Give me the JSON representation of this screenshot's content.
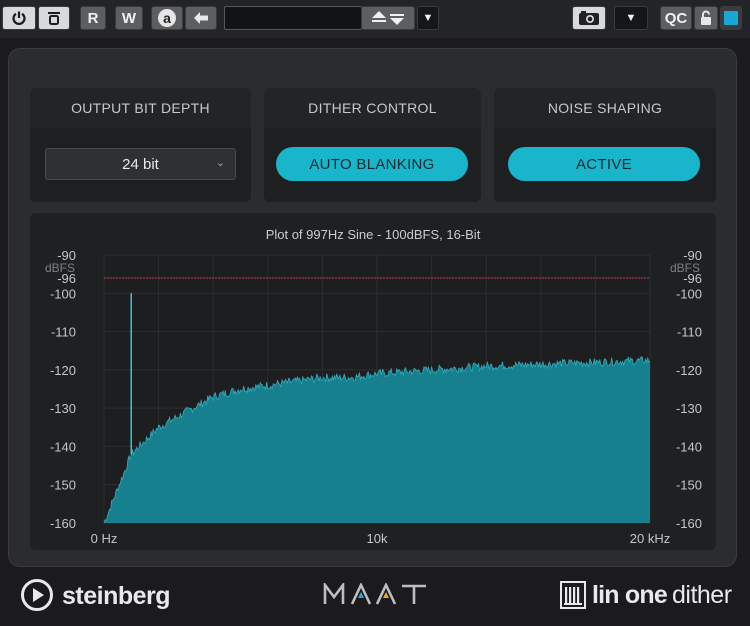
{
  "toolbar": {
    "read_label": "R",
    "write_label": "W",
    "auto_label": "a",
    "qc_label": "QC",
    "preset_name": "",
    "accent": "#19a7d6"
  },
  "panels": {
    "output_bit_depth": {
      "title": "OUTPUT BIT DEPTH",
      "value": "24 bit"
    },
    "dither_control": {
      "title": "DITHER CONTROL",
      "value": "AUTO BLANKING"
    },
    "noise_shaping": {
      "title": "NOISE SHAPING",
      "value": "ACTIVE"
    }
  },
  "plot": {
    "title": "Plot of 997Hz Sine - 100dBFS, 16-Bit",
    "unit_label": "dBFS",
    "colors": {
      "fill": "#17808f",
      "edge": "#3fd0e2",
      "ref_line": "#c23650",
      "grid": "#2c2e31"
    }
  },
  "chart_data": {
    "type": "area",
    "title": "Plot of 997Hz Sine - 100dBFS, 16-Bit",
    "ylabel": "dBFS",
    "x_tick_labels": [
      "0 Hz",
      "10k",
      "20 kHz"
    ],
    "y_tick_labels": [
      "-90",
      "-96",
      "-100",
      "-110",
      "-120",
      "-130",
      "-140",
      "-150",
      "-160"
    ],
    "y_ticks": [
      -90,
      -96,
      -100,
      -110,
      -120,
      -130,
      -140,
      -150,
      -160
    ],
    "xlim": [
      0,
      20000
    ],
    "ylim": [
      -160,
      -90
    ],
    "reference_line_dbfs": -96,
    "peak": {
      "x": 997,
      "y": -100
    },
    "series": [
      {
        "x": [
          0,
          500,
          1000,
          2000,
          3000,
          4000,
          5000,
          6000,
          7000,
          8000,
          9000,
          10000,
          12000,
          14000,
          16000,
          18000,
          20000
        ],
        "values": [
          -160,
          -151,
          -142,
          -135,
          -131,
          -127,
          -125,
          -124,
          -123,
          -122,
          -122,
          -121,
          -120,
          -119,
          -118.5,
          -118,
          -117.5
        ]
      }
    ],
    "grid": true
  },
  "footer": {
    "steinberg": "steinberg",
    "maat": "MAAT",
    "lin_one": "lin one",
    "dither": "dither"
  }
}
